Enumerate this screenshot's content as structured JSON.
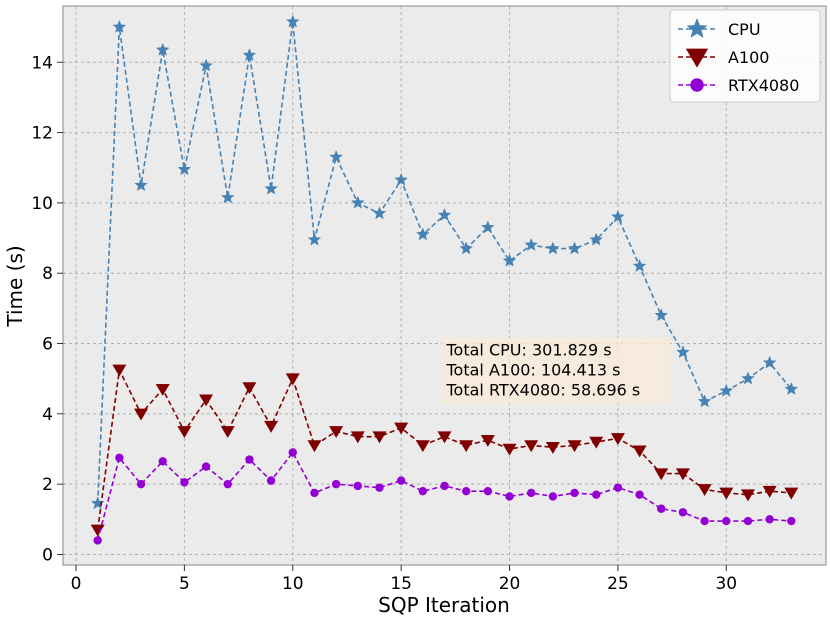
{
  "chart_data": {
    "type": "line",
    "title": "",
    "xlabel": "SQP Iteration",
    "ylabel": "Time (s)",
    "xlim": [
      -0.6,
      34.6
    ],
    "ylim": [
      -0.3,
      15.6
    ],
    "xticks": [
      0,
      5,
      10,
      15,
      20,
      25,
      30
    ],
    "yticks": [
      0,
      2,
      4,
      6,
      8,
      10,
      12,
      14
    ],
    "grid": true,
    "legend_position": "top-right",
    "x": [
      1,
      2,
      3,
      4,
      5,
      6,
      7,
      8,
      9,
      10,
      11,
      12,
      13,
      14,
      15,
      16,
      17,
      18,
      19,
      20,
      21,
      22,
      23,
      24,
      25,
      26,
      27,
      28,
      29,
      30,
      31,
      32,
      33
    ],
    "series": [
      {
        "name": "CPU",
        "color": "#4682b4",
        "marker": "star",
        "values": [
          1.45,
          15.0,
          10.5,
          14.35,
          10.95,
          13.9,
          10.15,
          14.2,
          10.4,
          15.15,
          8.95,
          11.3,
          10.0,
          9.7,
          10.65,
          9.1,
          9.65,
          8.7,
          9.3,
          8.35,
          8.8,
          8.7,
          8.7,
          8.95,
          9.6,
          8.2,
          6.8,
          5.75,
          4.35,
          4.65,
          5.0,
          5.45,
          4.7
        ]
      },
      {
        "name": "A100",
        "color": "#800000",
        "marker": "triangle-down",
        "values": [
          0.7,
          5.25,
          4.0,
          4.7,
          3.5,
          4.4,
          3.5,
          4.75,
          3.65,
          5.0,
          3.1,
          3.5,
          3.35,
          3.35,
          3.6,
          3.1,
          3.35,
          3.1,
          3.25,
          3.0,
          3.1,
          3.05,
          3.1,
          3.2,
          3.3,
          2.95,
          2.3,
          2.3,
          1.85,
          1.75,
          1.7,
          1.8,
          1.75
        ]
      },
      {
        "name": "RTX4080",
        "color": "#9400d3",
        "marker": "circle",
        "values": [
          0.4,
          2.75,
          2.0,
          2.65,
          2.05,
          2.5,
          2.0,
          2.7,
          2.1,
          2.9,
          1.75,
          2.0,
          1.95,
          1.9,
          2.1,
          1.8,
          1.95,
          1.8,
          1.8,
          1.65,
          1.75,
          1.65,
          1.75,
          1.7,
          1.9,
          1.7,
          1.3,
          1.2,
          0.95,
          0.95,
          0.95,
          1.0,
          0.95
        ]
      }
    ],
    "annotation": {
      "lines": [
        "Total CPU: 301.829 s",
        "Total A100: 104.413 s",
        "Total RTX4080: 58.696 s"
      ],
      "anchor_x": 17,
      "anchor_y": 6
    }
  }
}
